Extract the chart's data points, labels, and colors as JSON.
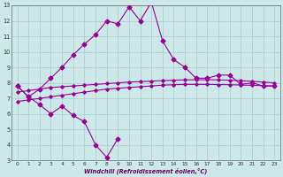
{
  "xlabel": "Windchill (Refroidissement éolien,°C)",
  "background_color": "#cce8e8",
  "grid_color": "#aacccc",
  "line_color": "#990099",
  "ylim": [
    3,
    13
  ],
  "xlim": [
    -0.5,
    23.5
  ],
  "yticks": [
    3,
    4,
    5,
    6,
    7,
    8,
    9,
    10,
    11,
    12,
    13
  ],
  "xticks": [
    0,
    1,
    2,
    3,
    4,
    5,
    6,
    7,
    8,
    9,
    10,
    11,
    12,
    13,
    14,
    15,
    16,
    17,
    18,
    19,
    20,
    21,
    22,
    23
  ],
  "line_spiky_x": [
    0,
    1,
    2,
    3,
    4,
    5,
    6,
    7,
    8,
    9,
    10,
    11,
    12,
    13,
    14,
    15,
    16,
    17,
    18,
    19,
    20,
    21,
    22,
    23
  ],
  "line_spiky_y": [
    7.8,
    7.1,
    7.6,
    8.3,
    9.0,
    9.8,
    10.5,
    11.1,
    12.0,
    11.8,
    12.9,
    12.0,
    13.2,
    10.7,
    9.5,
    9.0,
    8.3,
    8.3,
    8.5,
    8.5,
    7.9,
    8.0,
    7.8,
    7.8
  ],
  "line_jagged_x": [
    0,
    1,
    2,
    3,
    4,
    5,
    6,
    7,
    8,
    9
  ],
  "line_jagged_y": [
    7.8,
    7.1,
    6.6,
    6.0,
    6.5,
    5.9,
    5.5,
    4.0,
    3.2,
    4.4
  ],
  "line_flat1_x": [
    0,
    1,
    2,
    3,
    4,
    5,
    6,
    7,
    8,
    9,
    10,
    11,
    12,
    13,
    14,
    15,
    16,
    17,
    18,
    19,
    20,
    21,
    22,
    23
  ],
  "line_flat1_y": [
    6.8,
    6.9,
    7.0,
    7.1,
    7.2,
    7.3,
    7.4,
    7.5,
    7.6,
    7.65,
    7.7,
    7.75,
    7.8,
    7.85,
    7.88,
    7.9,
    7.9,
    7.9,
    7.89,
    7.88,
    7.86,
    7.84,
    7.82,
    7.8
  ],
  "line_flat2_x": [
    0,
    1,
    2,
    3,
    4,
    5,
    6,
    7,
    8,
    9,
    10,
    11,
    12,
    13,
    14,
    15,
    16,
    17,
    18,
    19,
    20,
    21,
    22,
    23
  ],
  "line_flat2_y": [
    7.4,
    7.5,
    7.6,
    7.7,
    7.75,
    7.8,
    7.85,
    7.9,
    7.95,
    8.0,
    8.05,
    8.08,
    8.11,
    8.14,
    8.17,
    8.19,
    8.2,
    8.2,
    8.19,
    8.17,
    8.14,
    8.1,
    8.05,
    8.0
  ]
}
